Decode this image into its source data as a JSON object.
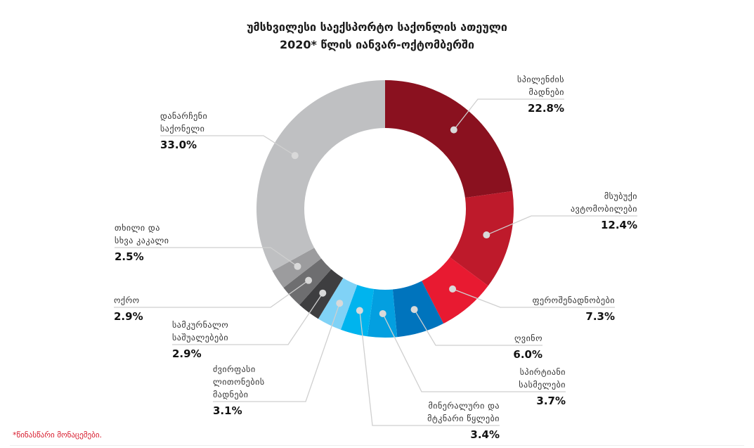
{
  "chart_data": {
    "type": "pie",
    "variant": "donut",
    "title_line1": "უმსხვილესი საექსპორტო საქონლის ათეული",
    "title_line2": "2020* წლის იანვარ-ოქტომბერში",
    "start": "top",
    "direction": "clockwise",
    "slices": [
      {
        "name_line1": "სპილენძის",
        "name_line2": "მადნები",
        "value": 22.8,
        "label": "22.8%",
        "color": "#8a111f"
      },
      {
        "name_line1": "მსუბუქი",
        "name_line2": "ავტომობილები",
        "value": 12.4,
        "label": "12.4%",
        "color": "#be1a2b"
      },
      {
        "name_line1": "ფეროშენადნობები",
        "value": 7.3,
        "label": "7.3%",
        "color": "#e81a31"
      },
      {
        "name_line1": "ღვინო",
        "value": 6.0,
        "label": "6.0%",
        "color": "#0074bd"
      },
      {
        "name_line1": "სპირტიანი",
        "name_line2": "სასმელები",
        "value": 3.7,
        "label": "3.7%",
        "color": "#039fe0"
      },
      {
        "name_line1": "მინერალური და",
        "name_line2": "მტკნარი წყლები",
        "value": 3.4,
        "label": "3.4%",
        "color": "#00b4ee"
      },
      {
        "name_line1": "ძვირფასი",
        "name_line2": "ლითონების",
        "name_line3": "მადნები",
        "value": 3.1,
        "label": "3.1%",
        "color": "#80d2f6"
      },
      {
        "name_line1": "სამკურნალო",
        "name_line2": "საშუალებები",
        "value": 2.9,
        "label": "2.9%",
        "color": "#3e3e40"
      },
      {
        "name_line1": "ოქრო",
        "value": 2.9,
        "label": "2.9%",
        "color": "#6e6e70"
      },
      {
        "name_line1": "თხილი და",
        "name_line2": "სხვა კაკალი",
        "value": 2.5,
        "label": "2.5%",
        "color": "#9c9c9e"
      },
      {
        "name_line1": "დანარჩენი",
        "name_line2": "საქონელი",
        "value": 33.0,
        "label": "33.0%",
        "color": "#bfc0c2"
      }
    ],
    "footnote": "*წინასწარი მონაცემები."
  }
}
